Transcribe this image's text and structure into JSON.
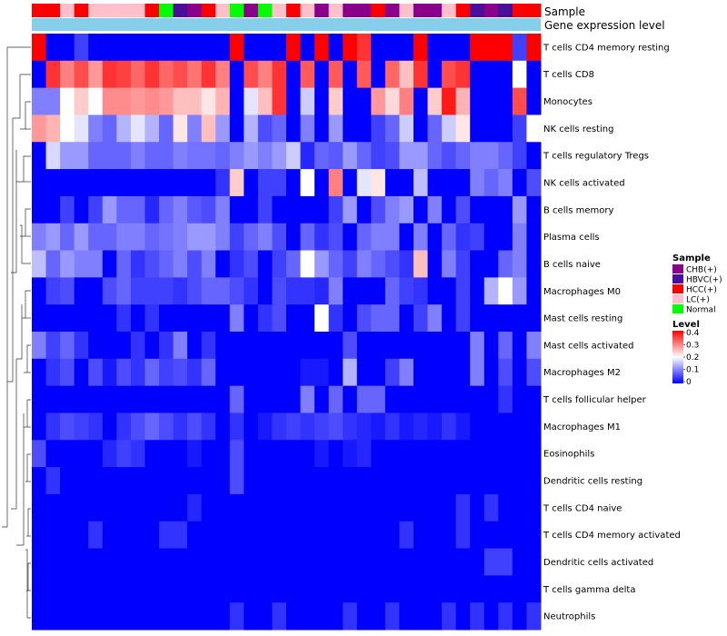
{
  "chart_data": {
    "type": "heatmap",
    "annotation_labels": {
      "sample": "Sample",
      "gene": "Gene expression level"
    },
    "sample_groups": [
      "HCC(+)",
      "HCC(+)",
      "LC(+)",
      "HCC(+)",
      "LC(+)",
      "LC(+)",
      "LC(+)",
      "LC(+)",
      "HCC(+)",
      "Normal",
      "HBVC(+)",
      "CHB(+)",
      "HCC(+)",
      "LC(+)",
      "Normal",
      "CHB(+)",
      "Normal",
      "LC(+)",
      "HCC(+)",
      "LC(+)",
      "CHB(+)",
      "LC(+)",
      "CHB(+)",
      "CHB(+)",
      "HCC(+)",
      "CHB(+)",
      "LC(+)",
      "CHB(+)",
      "CHB(+)",
      "LC(+)",
      "HCC(+)",
      "HBVC(+)",
      "CHB(+)",
      "HBVC(+)",
      "HCC(+)",
      "HCC(+)"
    ],
    "row_labels": [
      "T cells CD4 memory resting",
      "T cells CD8",
      "Monocytes",
      "NK cells resting",
      "T cells regulatory  Tregs",
      "NK cells activated",
      "B cells memory",
      "Plasma cells",
      "B cells naive",
      "Macrophages M0",
      "Mast cells resting",
      "Mast cells activated",
      "Macrophages M2",
      "T cells follicular helper",
      "Macrophages M1",
      "Eosinophils",
      "Dendritic cells resting",
      "T cells CD4 naive",
      "T cells CD4 memory activated",
      "Dendritic cells activated",
      "T cells gamma delta",
      "Neutrophils"
    ],
    "values": [
      [
        0.4,
        0,
        0,
        0.05,
        0,
        0,
        0,
        0,
        0,
        0,
        0,
        0,
        0,
        0,
        0.4,
        0,
        0,
        0,
        0.4,
        0,
        0.4,
        0,
        0.4,
        0.36,
        0,
        0,
        0,
        0.4,
        0,
        0,
        0,
        0.4,
        0.4,
        0.4,
        0.05,
        0.4
      ],
      [
        0,
        0.36,
        0.3,
        0.34,
        0.28,
        0.36,
        0.35,
        0.32,
        0.36,
        0.32,
        0.34,
        0.31,
        0.36,
        0.3,
        0,
        0.34,
        0.3,
        0.36,
        0,
        0.33,
        0,
        0.33,
        0,
        0.33,
        0,
        0.32,
        0.25,
        0.36,
        0,
        0.34,
        0.36,
        0,
        0,
        0,
        0.2,
        0
      ],
      [
        0.1,
        0.1,
        0.2,
        0.24,
        0.2,
        0.29,
        0.29,
        0.28,
        0.29,
        0.28,
        0.25,
        0.25,
        0.22,
        0.26,
        0,
        0.18,
        0.25,
        0.36,
        0,
        0.16,
        0,
        0.24,
        0,
        0,
        0.28,
        0.23,
        0.3,
        0,
        0.24,
        0.38,
        0.26,
        0,
        0,
        0,
        0.34,
        0
      ],
      [
        0.28,
        0.26,
        0.2,
        0.18,
        0.1,
        0.08,
        0.14,
        0.18,
        0.14,
        0.08,
        0.22,
        0.1,
        0.25,
        0.12,
        0,
        0.14,
        0.06,
        0.08,
        0,
        0.1,
        0,
        0.12,
        0,
        0,
        0.05,
        0.08,
        0.16,
        0,
        0.08,
        0.16,
        0.22,
        0,
        0,
        0,
        0.05,
        0.2
      ],
      [
        0,
        0.17,
        0.12,
        0.12,
        0.08,
        0.08,
        0.08,
        0.1,
        0.08,
        0.08,
        0.1,
        0.09,
        0.09,
        0.08,
        0.1,
        0.12,
        0.1,
        0.12,
        0.16,
        0.03,
        0.08,
        0.07,
        0.12,
        0.08,
        0.05,
        0.06,
        0.12,
        0.12,
        0.08,
        0.06,
        0.08,
        0.1,
        0.1,
        0.08,
        0.05,
        0
      ],
      [
        0,
        0,
        0,
        0,
        0,
        0,
        0,
        0,
        0,
        0,
        0,
        0,
        0,
        0.04,
        0.24,
        0,
        0.05,
        0.05,
        0,
        0.2,
        0,
        0.3,
        0,
        0.18,
        0.22,
        0,
        0,
        0.15,
        0,
        0,
        0,
        0.1,
        0.08,
        0.1,
        0,
        0.06
      ],
      [
        0,
        0,
        0.05,
        0,
        0.05,
        0.12,
        0.08,
        0.08,
        0.03,
        0.08,
        0.1,
        0.07,
        0.06,
        0.1,
        0,
        0,
        0.05,
        0,
        0,
        0,
        0,
        0.05,
        0.12,
        0,
        0.06,
        0.1,
        0.12,
        0,
        0.1,
        0,
        0.06,
        0,
        0,
        0,
        0.12,
        0
      ],
      [
        0.1,
        0.12,
        0.08,
        0.12,
        0.08,
        0.08,
        0.1,
        0.1,
        0.08,
        0.09,
        0.1,
        0.12,
        0.12,
        0.1,
        0.05,
        0.08,
        0.1,
        0.06,
        0,
        0.08,
        0.04,
        0.06,
        0,
        0.08,
        0.1,
        0.1,
        0,
        0.1,
        0,
        0.08,
        0.04,
        0.05,
        0,
        0,
        0.1,
        0
      ],
      [
        0.15,
        0.08,
        0.12,
        0.1,
        0.1,
        0,
        0.08,
        0.04,
        0.06,
        0.08,
        0.1,
        0.06,
        0.1,
        0,
        0.04,
        0.06,
        0,
        0.05,
        0.08,
        0.2,
        0.12,
        0.08,
        0.05,
        0.1,
        0.08,
        0.06,
        0.04,
        0.25,
        0,
        0.1,
        0.05,
        0,
        0,
        0.08,
        0.1,
        0
      ],
      [
        0,
        0.05,
        0.06,
        0,
        0,
        0.06,
        0.08,
        0.05,
        0.05,
        0.05,
        0.04,
        0.06,
        0.08,
        0.08,
        0.06,
        0.04,
        0,
        0.06,
        0.04,
        0.04,
        0.03,
        0.1,
        0,
        0,
        0,
        0.08,
        0.05,
        0.04,
        0,
        0,
        0.05,
        0,
        0.14,
        0.2,
        0.12,
        0
      ],
      [
        0,
        0,
        0,
        0,
        0,
        0,
        0.04,
        0,
        0.04,
        0,
        0,
        0,
        0,
        0,
        0.1,
        0,
        0.04,
        0.06,
        0,
        0,
        0.2,
        0.04,
        0,
        0.06,
        0.08,
        0.08,
        0,
        0.05,
        0.1,
        0,
        0.05,
        0,
        0,
        0,
        0,
        0
      ],
      [
        0.1,
        0.05,
        0.08,
        0.04,
        0,
        0,
        0,
        0.04,
        0,
        0.04,
        0.1,
        0,
        0.04,
        0,
        0,
        0,
        0,
        0,
        0,
        0,
        0,
        0,
        0.06,
        0,
        0,
        0,
        0,
        0,
        0,
        0,
        0,
        0.1,
        0,
        0.08,
        0,
        0.1
      ],
      [
        0,
        0.04,
        0.06,
        0,
        0.06,
        0.02,
        0.06,
        0.04,
        0.08,
        0.05,
        0.06,
        0.04,
        0.08,
        0,
        0,
        0,
        0,
        0,
        0,
        0.02,
        0.02,
        0,
        0.14,
        0,
        0,
        0.05,
        0.1,
        0,
        0,
        0,
        0,
        0.1,
        0,
        0.06,
        0,
        0.06
      ],
      [
        0,
        0,
        0,
        0,
        0,
        0,
        0,
        0,
        0,
        0,
        0,
        0,
        0,
        0,
        0.08,
        0,
        0,
        0,
        0,
        0.1,
        0,
        0.08,
        0,
        0.08,
        0.08,
        0,
        0,
        0,
        0,
        0,
        0,
        0,
        0,
        0.04,
        0,
        0
      ],
      [
        0,
        0.04,
        0.06,
        0.05,
        0.04,
        0,
        0.04,
        0.06,
        0.08,
        0.06,
        0.04,
        0.06,
        0.04,
        0,
        0.04,
        0,
        0.02,
        0.04,
        0.05,
        0.04,
        0.05,
        0.06,
        0.04,
        0.03,
        0.02,
        0.04,
        0.02,
        0.03,
        0.02,
        0.04,
        0.02,
        0,
        0,
        0,
        0,
        0
      ],
      [
        0.06,
        0,
        0,
        0,
        0,
        0.03,
        0.05,
        0.04,
        0,
        0,
        0,
        0.02,
        0,
        0,
        0.06,
        0,
        0,
        0,
        0,
        0,
        0.02,
        0,
        0.02,
        0.03,
        0,
        0,
        0,
        0,
        0,
        0,
        0,
        0,
        0,
        0,
        0,
        0
      ],
      [
        0,
        0.04,
        0,
        0,
        0,
        0,
        0,
        0,
        0,
        0,
        0,
        0,
        0,
        0,
        0.06,
        0,
        0,
        0,
        0,
        0,
        0,
        0,
        0,
        0,
        0,
        0,
        0,
        0,
        0,
        0,
        0,
        0,
        0,
        0,
        0,
        0
      ],
      [
        0,
        0,
        0,
        0,
        0,
        0,
        0,
        0,
        0,
        0,
        0,
        0.03,
        0,
        0,
        0,
        0,
        0,
        0,
        0,
        0,
        0,
        0,
        0,
        0,
        0,
        0,
        0,
        0,
        0,
        0,
        0.04,
        0,
        0.04,
        0,
        0,
        0
      ],
      [
        0,
        0,
        0,
        0,
        0.04,
        0,
        0,
        0,
        0,
        0.04,
        0.04,
        0,
        0,
        0,
        0,
        0,
        0,
        0,
        0,
        0,
        0,
        0,
        0,
        0,
        0,
        0,
        0.04,
        0,
        0,
        0,
        0.04,
        0,
        0,
        0,
        0,
        0
      ],
      [
        0,
        0,
        0,
        0,
        0,
        0,
        0,
        0,
        0,
        0,
        0,
        0,
        0,
        0,
        0,
        0,
        0,
        0,
        0,
        0,
        0,
        0,
        0,
        0,
        0,
        0,
        0,
        0,
        0,
        0,
        0,
        0,
        0.05,
        0.05,
        0,
        0
      ],
      [
        0,
        0,
        0,
        0,
        0,
        0,
        0,
        0,
        0,
        0,
        0,
        0,
        0,
        0,
        0,
        0,
        0,
        0,
        0,
        0,
        0,
        0,
        0,
        0,
        0,
        0,
        0,
        0,
        0,
        0,
        0,
        0,
        0,
        0,
        0,
        0
      ],
      [
        0,
        0,
        0,
        0,
        0,
        0,
        0,
        0,
        0,
        0,
        0,
        0,
        0,
        0,
        0.04,
        0,
        0,
        0.04,
        0,
        0,
        0,
        0,
        0.04,
        0,
        0,
        0.04,
        0,
        0,
        0,
        0.04,
        0,
        0.04,
        0,
        0.04,
        0,
        0.04
      ]
    ],
    "legend_sample": {
      "title": "Sample",
      "entries": [
        {
          "label": "CHB(+)",
          "color": "#8b008b"
        },
        {
          "label": "HBVC(+)",
          "color": "#4b0d9c"
        },
        {
          "label": "HCC(+)",
          "color": "#ff0000"
        },
        {
          "label": "LC(+)",
          "color": "#ffc0cb"
        },
        {
          "label": "Normal",
          "color": "#00ff00"
        }
      ]
    },
    "legend_level": {
      "title": "Level",
      "ticks": [
        "0.4",
        "0.3",
        "0.2",
        "0.1",
        "0"
      ],
      "range": [
        0,
        0.4
      ]
    },
    "colors": {
      "low": "#0000ff",
      "mid": "#ffffff",
      "high": "#ff0000",
      "gene_bar": "#87ceeb"
    }
  }
}
